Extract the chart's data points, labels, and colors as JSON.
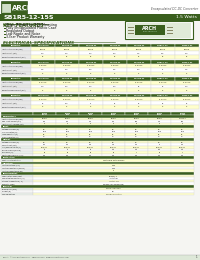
{
  "title_model": "SB1R5-12-15S",
  "title_desc": "Encapsulated DC-DC Converter",
  "subtitle": "1.5 Watts",
  "dark_green": "#3a5f1e",
  "mid_green": "#4a7a28",
  "light_green_bg": "#eaf0e6",
  "header_text_color": "#ffffff",
  "page_bg": "#f5f5f2",
  "key_features_title": "KEY FEATURES",
  "key_features": [
    "Power Module for PCB Mounting",
    "Fully Encapsulated Plastic Case",
    "Regulated Output",
    "Low Ripple and Noise",
    "3-Year Product Warranty"
  ],
  "elec_spec_title": "ELECTRICAL SPECIFICATIONS",
  "table_yellow_bg": "#ffffcc",
  "table_header_bg": "#4a7a28",
  "accent_color": "#3a5f1e",
  "footer_bg": "#dde8d8",
  "top_table_cols": [
    "SB 0.5x-xS",
    "SB 1R0-xS",
    "SB 1R5-xS",
    "SB 2R0-xS",
    "SB 3R5-xS",
    "SB5R0-1.5x",
    "SB5x0-1.5x"
  ],
  "big_table_cols": [
    "SB1R5\n5-3.3S",
    "SB1R5\n5-5S",
    "SB1R5\n5-9S",
    "SB1R5\n5-12S",
    "SB1R5\n5-15S",
    "SB1R5\n5-24S",
    "SB1R5\n12-15S"
  ],
  "border_color": "#999999"
}
